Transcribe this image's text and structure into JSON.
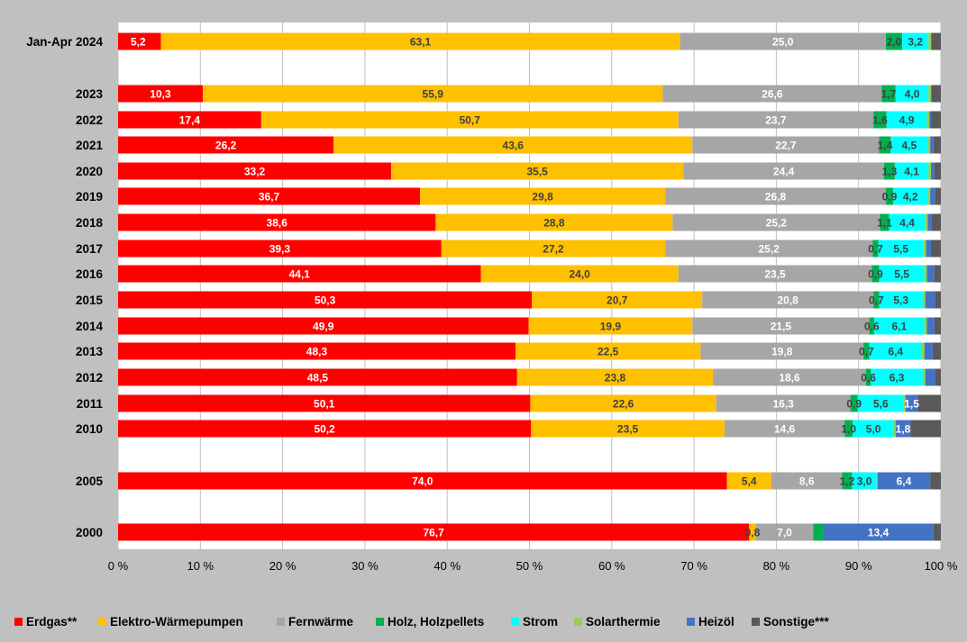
{
  "chart_data": {
    "type": "bar",
    "orientation": "horizontal",
    "stacked": true,
    "categories": [
      "Jan-Apr 2024",
      "2023",
      "2022",
      "2021",
      "2020",
      "2019",
      "2018",
      "2017",
      "2016",
      "2015",
      "2014",
      "2013",
      "2012",
      "2011",
      "2010",
      "2005",
      "2000"
    ],
    "series": [
      {
        "name": "Erdgas**",
        "color": "#ff0000",
        "label_color": "#ffffff",
        "values": [
          5.2,
          10.3,
          17.4,
          26.2,
          33.2,
          36.7,
          38.6,
          39.3,
          44.1,
          50.3,
          49.9,
          48.3,
          48.5,
          50.1,
          50.2,
          74.0,
          76.7
        ],
        "labels": [
          "5,2",
          "10,3",
          "17,4",
          "26,2",
          "33,2",
          "36,7",
          "38,6",
          "39,3",
          "44,1",
          "50,3",
          "49,9",
          "48,3",
          "48,5",
          "50,1",
          "50,2",
          "74,0",
          "76,7"
        ]
      },
      {
        "name": "Elektro-Wärmepumpen",
        "color": "#ffc000",
        "label_color": "#404040",
        "values": [
          63.1,
          55.9,
          50.7,
          43.6,
          35.5,
          29.8,
          28.8,
          27.2,
          24.0,
          20.7,
          19.9,
          22.5,
          23.8,
          22.6,
          23.5,
          5.4,
          0.8
        ],
        "labels": [
          "63,1",
          "55,9",
          "50,7",
          "43,6",
          "35,5",
          "29,8",
          "28,8",
          "27,2",
          "24,0",
          "20,7",
          "19,9",
          "22,5",
          "23,8",
          "22,6",
          "23,5",
          "5,4",
          "0,8"
        ]
      },
      {
        "name": "Fernwärme",
        "color": "#a6a6a6",
        "label_color": "#ffffff",
        "values": [
          25.0,
          26.6,
          23.7,
          22.7,
          24.4,
          26.8,
          25.2,
          25.2,
          23.5,
          20.8,
          21.5,
          19.8,
          18.6,
          16.3,
          14.6,
          8.6,
          7.0
        ],
        "labels": [
          "25,0",
          "26,6",
          "23,7",
          "22,7",
          "24,4",
          "26,8",
          "25,2",
          "25,2",
          "23,5",
          "20,8",
          "21,5",
          "19,8",
          "18,6",
          "16,3",
          "14,6",
          "8,6",
          "7,0"
        ]
      },
      {
        "name": "Holz, Holzpellets",
        "color": "#00b050",
        "label_color": "#404040",
        "values": [
          2.0,
          1.7,
          1.6,
          1.4,
          1.3,
          0.9,
          1.1,
          0.7,
          0.9,
          0.7,
          0.6,
          0.7,
          0.6,
          0.9,
          1.0,
          1.2,
          1.2
        ],
        "labels": [
          "2,0",
          "1,7",
          "1,6",
          "1,4",
          "1,3",
          "0,9",
          "1,1",
          "0,7",
          "0,9",
          "0,7",
          "0,6",
          "0,7",
          "0,6",
          "0,9",
          "1,0",
          "1,2",
          ""
        ]
      },
      {
        "name": "Strom",
        "color": "#00ffff",
        "label_color": "#404040",
        "values": [
          3.2,
          4.0,
          4.9,
          4.5,
          4.1,
          4.2,
          4.4,
          5.5,
          5.5,
          5.3,
          6.1,
          6.4,
          6.3,
          5.6,
          5.0,
          3.0,
          0.0
        ],
        "labels": [
          "3,2",
          "4,0",
          "4,9",
          "4,5",
          "4,1",
          "4,2",
          "4,4",
          "5,5",
          "5,5",
          "5,3",
          "6,1",
          "6,4",
          "6,3",
          "5,6",
          "5,0",
          "3,0",
          ""
        ]
      },
      {
        "name": "Solarthermie",
        "color": "#92d050",
        "label_color": "#404040",
        "values": [
          0.3,
          0.3,
          0.3,
          0.3,
          0.3,
          0.3,
          0.3,
          0.3,
          0.3,
          0.3,
          0.3,
          0.3,
          0.3,
          0.2,
          0.2,
          0.1,
          0.0
        ],
        "labels": [
          "",
          "",
          "",
          "",
          "",
          "",
          "",
          "",
          "",
          "",
          "",
          "",
          "",
          "",
          "",
          "",
          ""
        ]
      },
      {
        "name": "Heizöl",
        "color": "#4472c4",
        "label_color": "#ffffff",
        "values": [
          0.1,
          0.1,
          0.2,
          0.4,
          0.4,
          0.6,
          0.5,
          0.6,
          0.9,
          1.2,
          0.9,
          1.0,
          1.2,
          1.5,
          1.8,
          6.4,
          13.4
        ],
        "labels": [
          "",
          "",
          "",
          "",
          "",
          "",
          "",
          "",
          "",
          "",
          "",
          "",
          "",
          "1,5",
          "1,8",
          "6,4",
          "13,4"
        ]
      },
      {
        "name": "Sonstige***",
        "color": "#595959",
        "label_color": "#ffffff",
        "values": [
          1.1,
          1.1,
          1.2,
          0.9,
          0.8,
          0.7,
          1.1,
          1.2,
          0.8,
          0.7,
          0.8,
          1.0,
          0.7,
          2.8,
          3.7,
          1.3,
          0.9
        ],
        "labels": [
          "",
          "",
          "",
          "",
          "",
          "",
          "",
          "",
          "",
          "",
          "",
          "",
          "",
          "",
          "",
          "",
          ""
        ]
      }
    ],
    "x_ticks": [
      "0 %",
      "10 %",
      "20 %",
      "30 %",
      "40 %",
      "50 %",
      "60 %",
      "70 %",
      "80 %",
      "90 %",
      "100 %"
    ],
    "xlim": [
      0,
      100
    ],
    "grid": true,
    "legend_position": "bottom"
  }
}
